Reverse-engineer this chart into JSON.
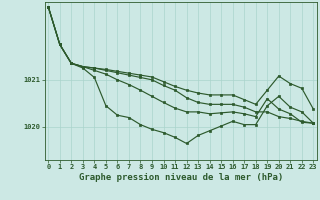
{
  "background_color": "#cce8e4",
  "grid_color": "#aad4cc",
  "line_color": "#2d5a2d",
  "title": "Graphe pression niveau de la mer (hPa)",
  "ylim": [
    1019.3,
    1022.65
  ],
  "xlim": [
    -0.3,
    23.3
  ],
  "yticks": [
    1020,
    1021
  ],
  "series": [
    [
      1022.55,
      1021.75,
      1021.35,
      1021.25,
      1021.05,
      1020.45,
      1020.25,
      1020.2,
      1020.05,
      1019.95,
      1019.88,
      1019.78,
      1019.65,
      1019.82,
      1019.92,
      1020.02,
      1020.12,
      1020.05,
      1020.05,
      1020.45,
      1020.65,
      1020.42,
      1020.32,
      1020.08
    ],
    [
      1022.55,
      1021.75,
      1021.35,
      1021.28,
      1021.2,
      1021.12,
      1021.0,
      1020.9,
      1020.78,
      1020.65,
      1020.52,
      1020.4,
      1020.32,
      1020.32,
      1020.28,
      1020.3,
      1020.32,
      1020.28,
      1020.22,
      1020.6,
      1020.38,
      1020.28,
      1020.1,
      1020.08
    ],
    [
      1022.55,
      1021.75,
      1021.35,
      1021.28,
      1021.25,
      1021.2,
      1021.15,
      1021.1,
      1021.05,
      1021.0,
      1020.88,
      1020.78,
      1020.62,
      1020.52,
      1020.48,
      1020.48,
      1020.48,
      1020.42,
      1020.32,
      1020.32,
      1020.22,
      1020.18,
      1020.12,
      1020.08
    ],
    [
      1022.55,
      1021.75,
      1021.35,
      1021.28,
      1021.25,
      1021.22,
      1021.18,
      1021.14,
      1021.1,
      1021.06,
      1020.96,
      1020.86,
      1020.78,
      1020.72,
      1020.68,
      1020.68,
      1020.68,
      1020.58,
      1020.48,
      1020.78,
      1021.08,
      1020.92,
      1020.82,
      1020.38
    ]
  ],
  "marker": "s",
  "markersize": 1.8,
  "linewidth": 0.85,
  "title_fontsize": 6.5,
  "tick_fontsize": 5.0,
  "title_fontweight": "bold"
}
